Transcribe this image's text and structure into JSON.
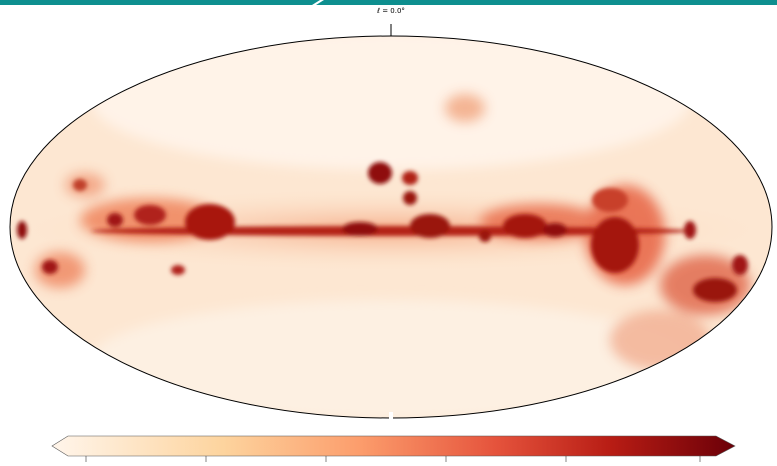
{
  "header": {
    "label": "ℓ = 0.0°"
  }
}
